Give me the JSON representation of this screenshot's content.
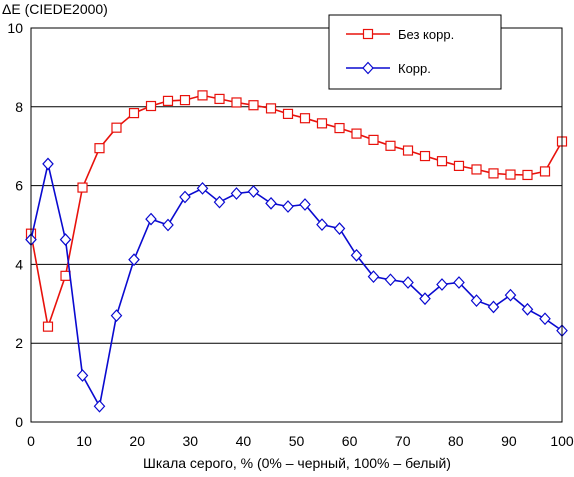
{
  "chart_data": {
    "type": "line",
    "ylabel": "ΔE (CIEDE2000)",
    "xlabel": "Шкала серого, % (0% – черный, 100% – белый)",
    "xlim": [
      0,
      100
    ],
    "ylim": [
      0,
      10
    ],
    "x_ticks": [
      "0",
      "10",
      "20",
      "30",
      "40",
      "50",
      "60",
      "70",
      "80",
      "90",
      "100"
    ],
    "y_ticks": [
      "0",
      "2",
      "4",
      "6",
      "8",
      "10"
    ],
    "grid": "horizontal",
    "legend_position": "top-right",
    "x": [
      0,
      3.2,
      6.5,
      9.7,
      12.9,
      16.1,
      19.4,
      22.6,
      25.8,
      29.0,
      32.3,
      35.5,
      38.7,
      41.9,
      45.2,
      48.4,
      51.6,
      54.8,
      58.1,
      61.3,
      64.5,
      67.7,
      71.0,
      74.2,
      77.4,
      80.6,
      83.9,
      87.1,
      90.3,
      93.5,
      96.8,
      100
    ],
    "series": [
      {
        "name": "Без корр.",
        "color": "#e8120c",
        "marker": "square",
        "values": [
          4.78,
          2.42,
          3.71,
          5.95,
          6.95,
          7.47,
          7.84,
          8.02,
          8.15,
          8.17,
          8.29,
          8.2,
          8.11,
          8.04,
          7.96,
          7.82,
          7.71,
          7.58,
          7.46,
          7.32,
          7.16,
          7.01,
          6.89,
          6.75,
          6.62,
          6.5,
          6.41,
          6.31,
          6.28,
          6.27,
          6.36,
          7.12
        ]
      },
      {
        "name": "Корр.",
        "color": "#0a0ad0",
        "marker": "diamond",
        "values": [
          4.63,
          6.55,
          4.63,
          1.18,
          0.4,
          2.7,
          4.12,
          5.15,
          5.0,
          5.71,
          5.93,
          5.58,
          5.8,
          5.85,
          5.55,
          5.47,
          5.52,
          5.01,
          4.91,
          4.23,
          3.69,
          3.61,
          3.54,
          3.13,
          3.49,
          3.54,
          3.08,
          2.92,
          3.22,
          2.86,
          2.62,
          2.32
        ]
      }
    ]
  }
}
